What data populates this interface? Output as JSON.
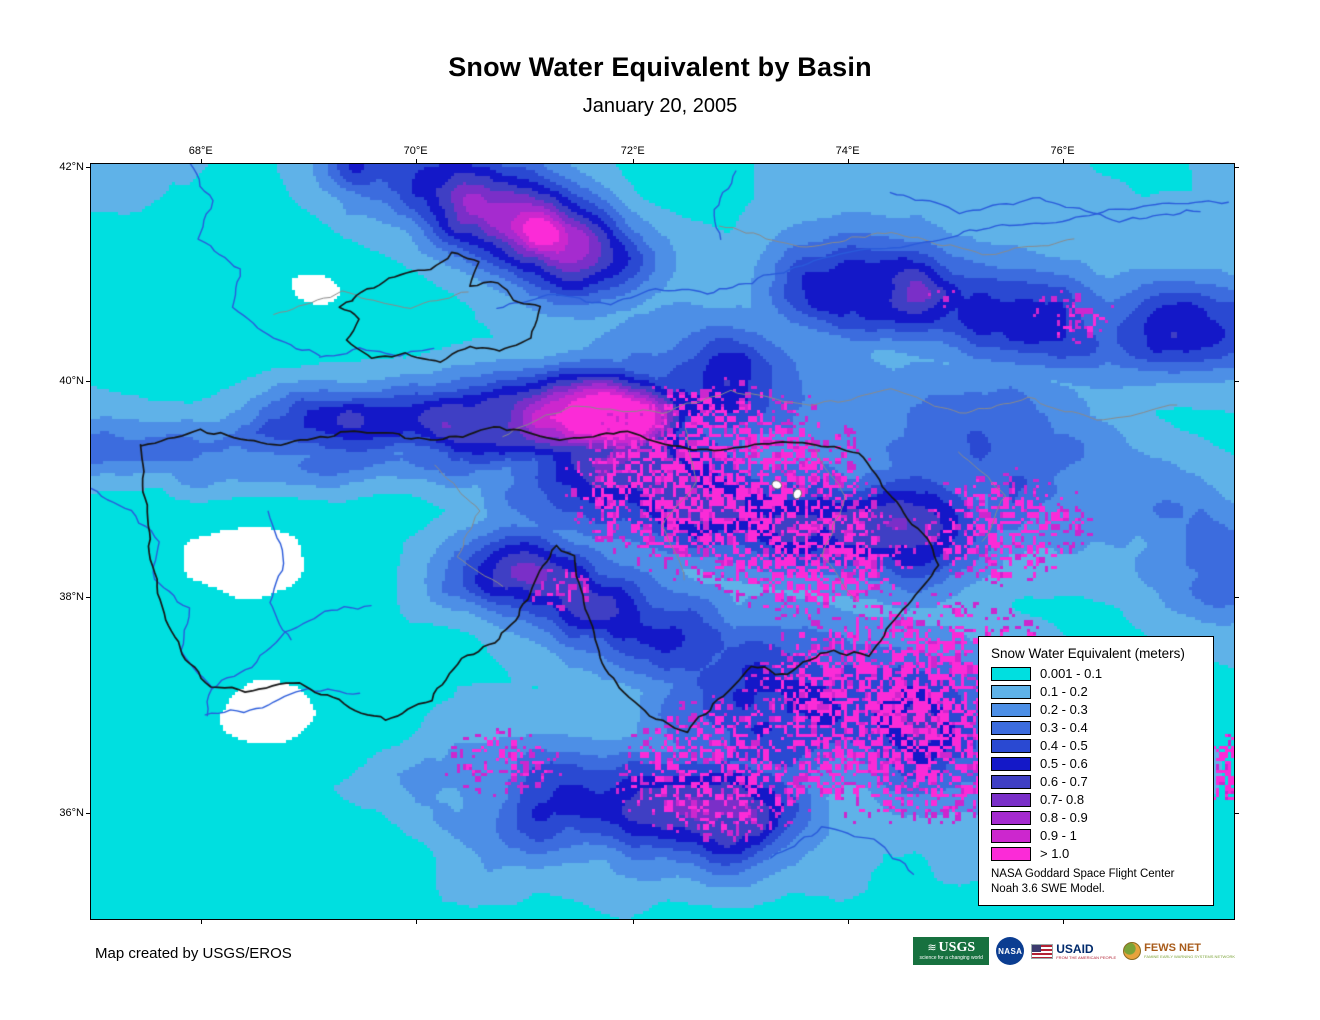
{
  "header": {
    "title": "Snow Water Equivalent by Basin",
    "subtitle": "January 20, 2005"
  },
  "map": {
    "x_ticks": [
      {
        "label": "68°E",
        "pos": 0.096
      },
      {
        "label": "70°E",
        "pos": 0.284
      },
      {
        "label": "72°E",
        "pos": 0.474
      },
      {
        "label": "74°E",
        "pos": 0.662
      },
      {
        "label": "76°E",
        "pos": 0.85
      }
    ],
    "y_ticks": [
      {
        "label": "42°N",
        "pos": 0.004
      },
      {
        "label": "40°N",
        "pos": 0.287
      },
      {
        "label": "38°N",
        "pos": 0.573
      },
      {
        "label": "36°N",
        "pos": 0.86
      }
    ]
  },
  "legend": {
    "title": "Snow Water Equivalent (meters)",
    "entries": [
      {
        "label": "0.001 - 0.1",
        "color": "#00DFE0"
      },
      {
        "label": "0.1 - 0.2",
        "color": "#5FB2E8"
      },
      {
        "label": "0.2 - 0.3",
        "color": "#4D8FE6"
      },
      {
        "label": "0.3 - 0.4",
        "color": "#3C6CDE"
      },
      {
        "label": "0.4 - 0.5",
        "color": "#2A49D2"
      },
      {
        "label": "0.5 - 0.6",
        "color": "#1418C8"
      },
      {
        "label": "0.6 - 0.7",
        "color": "#3F3FC4"
      },
      {
        "label": "0.7- 0.8",
        "color": "#7A2FC8"
      },
      {
        "label": "0.8 - 0.9",
        "color": "#A52BCF"
      },
      {
        "label": "0.9 - 1",
        "color": "#CC27CE"
      },
      {
        "label": "> 1.0",
        "color": "#FB2BD7"
      }
    ],
    "source_line1": "NASA Goddard Space Flight Center",
    "source_line2": "Noah 3.6 SWE Model."
  },
  "footer": {
    "credit": "Map created by USGS/EROS",
    "logos": {
      "usgs": {
        "text": "USGS",
        "tagline": "science for a changing world"
      },
      "nasa": {
        "text": "NASA"
      },
      "usaid": {
        "text": "USAID",
        "tagline": "FROM THE AMERICAN PEOPLE"
      },
      "fews": {
        "text": "FEWS NET",
        "tagline": "FAMINE EARLY WARNING SYSTEMS NETWORK"
      }
    }
  }
}
